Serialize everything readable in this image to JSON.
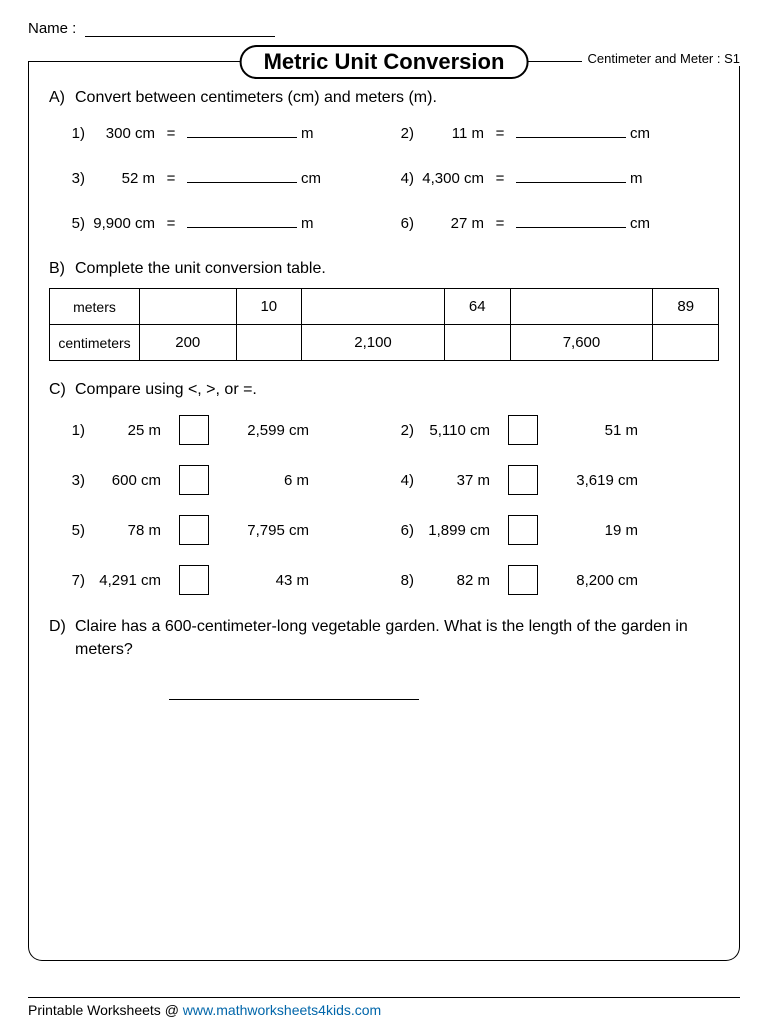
{
  "name_label": "Name :",
  "title": "Metric Unit Conversion",
  "subtitle": "Centimeter and Meter : S1",
  "sectionA": {
    "label": "A)",
    "prompt": "Convert between centimeters (cm) and meters (m).",
    "items": [
      {
        "n": "1)",
        "given": "300 cm",
        "ansUnit": "m"
      },
      {
        "n": "2)",
        "given": "11 m",
        "ansUnit": "cm"
      },
      {
        "n": "3)",
        "given": "52 m",
        "ansUnit": "cm"
      },
      {
        "n": "4)",
        "given": "4,300 cm",
        "ansUnit": "m"
      },
      {
        "n": "5)",
        "given": "9,900 cm",
        "ansUnit": "m"
      },
      {
        "n": "6)",
        "given": "27 m",
        "ansUnit": "cm"
      }
    ]
  },
  "sectionB": {
    "label": "B)",
    "prompt": "Complete the unit conversion table.",
    "row1_label": "meters",
    "row2_label": "centimeters",
    "meters": [
      "",
      "10",
      "",
      "64",
      "",
      "89"
    ],
    "centimeters": [
      "200",
      "",
      "2,100",
      "",
      "7,600",
      ""
    ]
  },
  "sectionC": {
    "label": "C)",
    "prompt": "Compare using <, >, or =.",
    "items": [
      {
        "n": "1)",
        "left": "25 m",
        "right": "2,599 cm"
      },
      {
        "n": "2)",
        "left": "5,110 cm",
        "right": "51 m"
      },
      {
        "n": "3)",
        "left": "600 cm",
        "right": "6 m"
      },
      {
        "n": "4)",
        "left": "37 m",
        "right": "3,619 cm"
      },
      {
        "n": "5)",
        "left": "78 m",
        "right": "7,795 cm"
      },
      {
        "n": "6)",
        "left": "1,899 cm",
        "right": "19 m"
      },
      {
        "n": "7)",
        "left": "4,291 cm",
        "right": "43 m"
      },
      {
        "n": "8)",
        "left": "82 m",
        "right": "8,200 cm"
      }
    ]
  },
  "sectionD": {
    "label": "D)",
    "prompt": "Claire has a 600-centimeter-long vegetable garden. What is the length of the garden in meters?"
  },
  "footer_prefix": "Printable Worksheets @ ",
  "footer_link": "www.mathworksheets4kids.com"
}
